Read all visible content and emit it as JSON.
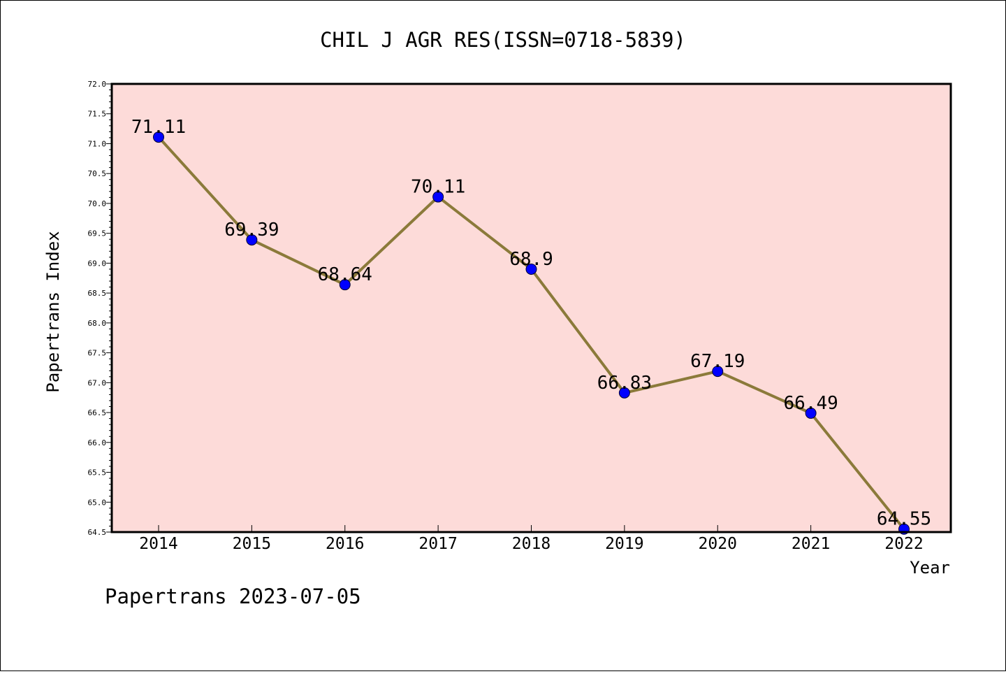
{
  "chart_data": {
    "type": "line",
    "title": "CHIL J AGR RES(ISSN=0718-5839)",
    "xlabel": "Year",
    "ylabel": "Papertrans Index",
    "categories": [
      "2014",
      "2015",
      "2016",
      "2017",
      "2018",
      "2019",
      "2020",
      "2021",
      "2022"
    ],
    "values": [
      71.11,
      69.39,
      68.64,
      70.11,
      68.9,
      66.83,
      67.19,
      66.49,
      64.55
    ],
    "data_labels": [
      "71.11",
      "69.39",
      "68.64",
      "70.11",
      "68.9",
      "66.83",
      "67.19",
      "66.49",
      "64.55"
    ],
    "ylim": [
      64.5,
      72.0
    ],
    "yticks": [
      "64.5",
      "65.0",
      "65.5",
      "66.0",
      "66.5",
      "67.0",
      "67.5",
      "68.0",
      "68.5",
      "69.0",
      "69.5",
      "70.0",
      "70.5",
      "71.0",
      "71.5",
      "72.0"
    ],
    "grid": false,
    "colors": {
      "plot_background": "#fddbd9",
      "line": "#8b7a3a",
      "marker": "#0000ff",
      "axis": "#000000"
    }
  },
  "footer": {
    "text": "Papertrans 2023-07-05"
  }
}
